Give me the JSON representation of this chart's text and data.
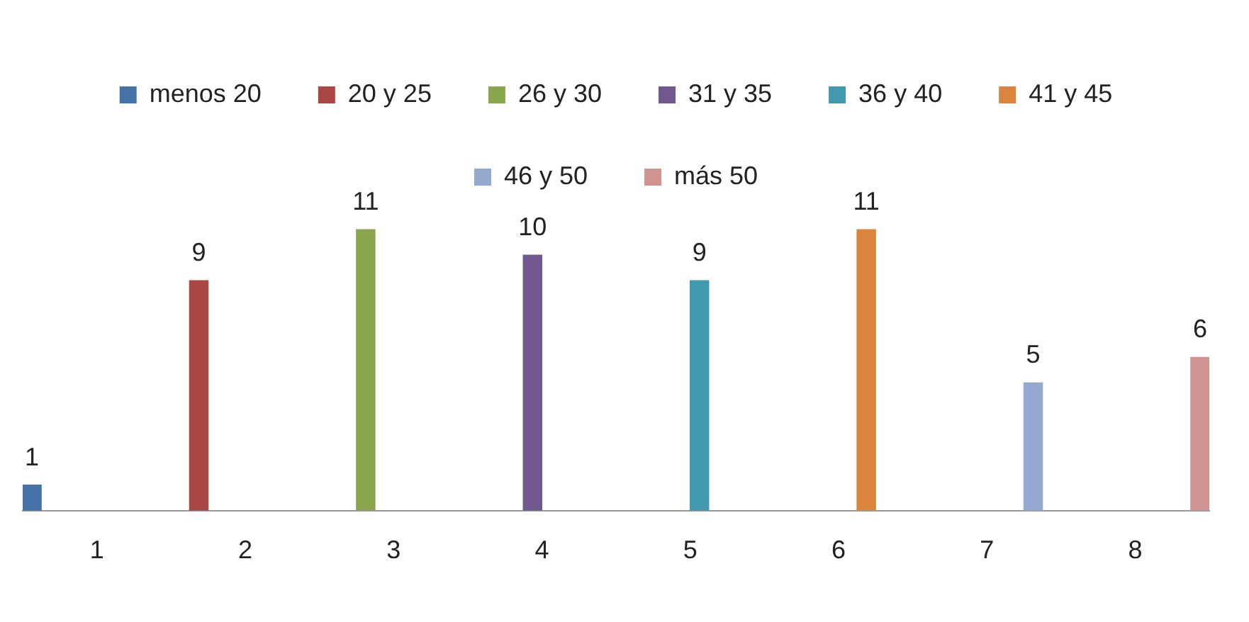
{
  "chart_data": {
    "type": "bar",
    "categories": [
      "1",
      "2",
      "3",
      "4",
      "5",
      "6",
      "7",
      "8"
    ],
    "series": [
      {
        "name": "menos 20",
        "color": "#4572a7",
        "values": [
          1,
          null,
          null,
          null,
          null,
          null,
          null,
          null
        ]
      },
      {
        "name": "20 y 25",
        "color": "#aa4643",
        "values": [
          null,
          9,
          null,
          null,
          null,
          null,
          null,
          null
        ]
      },
      {
        "name": "26 y 30",
        "color": "#89a54e",
        "values": [
          null,
          null,
          11,
          null,
          null,
          null,
          null,
          null
        ]
      },
      {
        "name": "31 y 35",
        "color": "#71588f",
        "values": [
          null,
          null,
          null,
          10,
          null,
          null,
          null,
          null
        ]
      },
      {
        "name": "36 y 40",
        "color": "#4198af",
        "values": [
          null,
          null,
          null,
          null,
          9,
          null,
          null,
          null
        ]
      },
      {
        "name": "41 y 45",
        "color": "#db843d",
        "values": [
          null,
          null,
          null,
          null,
          null,
          11,
          null,
          null
        ]
      },
      {
        "name": "46 y 50",
        "color": "#93a9cf",
        "values": [
          null,
          null,
          null,
          null,
          null,
          null,
          5,
          null
        ]
      },
      {
        "name": "más 50",
        "color": "#d19392",
        "values": [
          null,
          null,
          null,
          null,
          null,
          null,
          null,
          6
        ]
      }
    ],
    "data_labels": true,
    "grid": false,
    "legend": "top"
  }
}
